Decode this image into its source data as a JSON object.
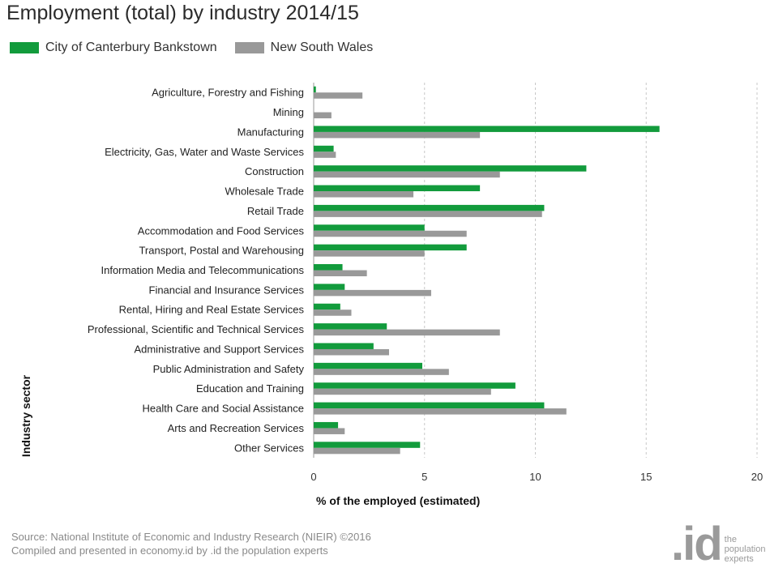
{
  "title": "Employment (total) by industry 2014/15",
  "legend": {
    "series1_label": "City of Canterbury Bankstown",
    "series2_label": "New South Wales"
  },
  "footer": {
    "line1": "Source: National Institute of Economic and Industry Research (NIEIR) ©2016",
    "line2": "Compiled and presented in economy.id by .id the population experts"
  },
  "brand": {
    "mark": ".id",
    "line1": "the",
    "line2": "population",
    "line3": "experts"
  },
  "chart_data": {
    "type": "bar",
    "orientation": "horizontal",
    "title": "Employment (total) by industry 2014/15",
    "xlabel": "% of the employed (estimated)",
    "ylabel": "Industry sector",
    "xlim": [
      0,
      20
    ],
    "xticks": [
      0,
      5,
      10,
      15,
      20
    ],
    "grid": "vertical dashed",
    "legend_position": "top-left",
    "categories": [
      "Agriculture, Forestry and Fishing",
      "Mining",
      "Manufacturing",
      "Electricity, Gas, Water and Waste Services",
      "Construction",
      "Wholesale Trade",
      "Retail Trade",
      "Accommodation and Food Services",
      "Transport, Postal and Warehousing",
      "Information Media and Telecommunications",
      "Financial and Insurance Services",
      "Rental, Hiring and Real Estate Services",
      "Professional, Scientific and Technical Services",
      "Administrative and Support Services",
      "Public Administration and Safety",
      "Education and Training",
      "Health Care and Social Assistance",
      "Arts and Recreation Services",
      "Other Services"
    ],
    "series": [
      {
        "name": "City of Canterbury Bankstown",
        "color": "#129b3c",
        "values": [
          0.1,
          0.0,
          15.6,
          0.9,
          12.3,
          7.5,
          10.4,
          5.0,
          6.9,
          1.3,
          1.4,
          1.2,
          3.3,
          2.7,
          4.9,
          9.1,
          10.4,
          1.1,
          4.8
        ]
      },
      {
        "name": "New South Wales",
        "color": "#999999",
        "values": [
          2.2,
          0.8,
          7.5,
          1.0,
          8.4,
          4.5,
          10.3,
          6.9,
          5.0,
          2.4,
          5.3,
          1.7,
          8.4,
          3.4,
          6.1,
          8.0,
          11.4,
          1.4,
          3.9
        ]
      }
    ]
  }
}
